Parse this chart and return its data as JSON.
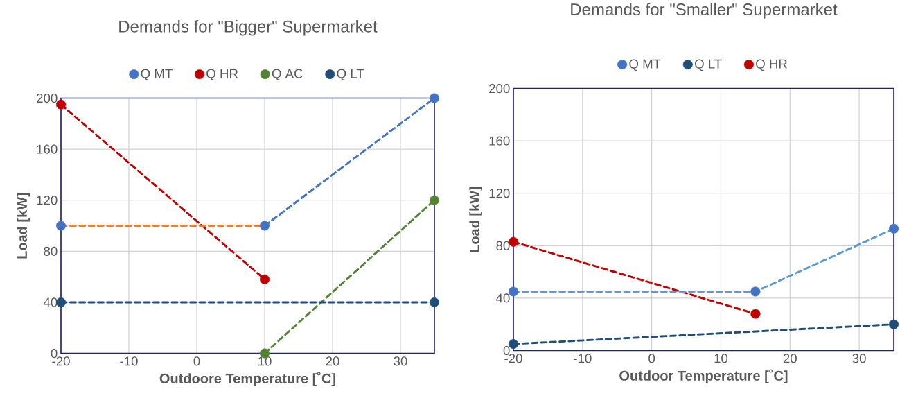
{
  "chart_data": [
    {
      "type": "line",
      "title": "Demands for \"Bigger\" Supermarket",
      "xlabel": "Outdoore Temperature [˚C]",
      "ylabel": "Load [kW]",
      "xlim": [
        -20,
        35
      ],
      "ylim": [
        0,
        200
      ],
      "xticks": [
        -20,
        -10,
        0,
        10,
        20,
        30
      ],
      "yticks": [
        0,
        40,
        80,
        120,
        160,
        200
      ],
      "grid": true,
      "legend": "top",
      "line_style": "dashed",
      "marker": "circle",
      "series": [
        {
          "name": "Q MT",
          "type": "scatter",
          "color": "#4472c4",
          "x": [
            -20,
            10,
            35
          ],
          "values": [
            100,
            100,
            200
          ]
        },
        {
          "name": "Q HR",
          "color": "#c00000",
          "x": [
            -20,
            10
          ],
          "values": [
            195,
            58
          ]
        },
        {
          "name": "Q AC",
          "color": "#548235",
          "x": [
            10,
            35
          ],
          "values": [
            0,
            120
          ]
        },
        {
          "name": "Q LT",
          "color": "#1f4e79",
          "x": [
            -20,
            35
          ],
          "values": [
            40,
            40
          ]
        },
        {
          "color": "#ed7d31",
          "marker": "none",
          "x": [
            -20,
            10
          ],
          "values": [
            100,
            100
          ]
        },
        {
          "color": "#4472c4",
          "marker": "none",
          "x": [
            10,
            35
          ],
          "values": [
            100,
            200
          ]
        }
      ]
    },
    {
      "type": "line",
      "title": "Demands for \"Smaller\" Supermarket",
      "xlabel": "Outdoor Temperature [˚C]",
      "ylabel": "Load [kW]",
      "xlim": [
        -20,
        35
      ],
      "ylim": [
        0,
        200
      ],
      "xticks": [
        -20,
        -10,
        0,
        10,
        20,
        30
      ],
      "yticks": [
        0,
        40,
        80,
        120,
        160,
        200
      ],
      "grid": true,
      "legend": "top",
      "line_style": "dashed",
      "marker": "circle",
      "series": [
        {
          "name": "Q MT",
          "type": "scatter",
          "color": "#4472c4",
          "x": [
            -20,
            15,
            35
          ],
          "values": [
            45,
            45,
            93
          ]
        },
        {
          "name": "Q LT",
          "color": "#1f4e79",
          "x": [
            -20,
            35
          ],
          "values": [
            5,
            20
          ]
        },
        {
          "name": "Q HR",
          "color": "#c00000",
          "x": [
            -20,
            15
          ],
          "values": [
            83,
            28
          ]
        },
        {
          "color": "#5b9bd5",
          "marker": "none",
          "x": [
            -20,
            15,
            35
          ],
          "values": [
            45,
            45,
            93
          ]
        }
      ]
    }
  ]
}
